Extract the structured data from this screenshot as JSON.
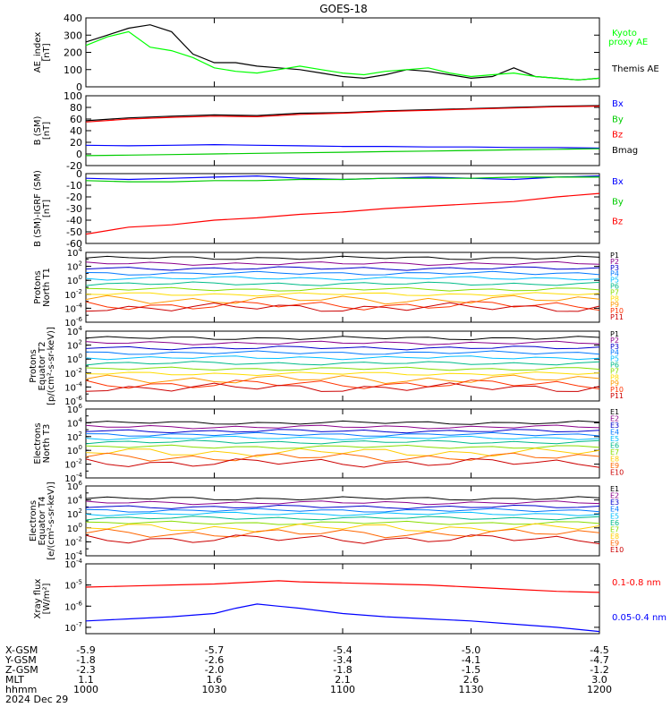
{
  "title": "GOES-18",
  "footer": {
    "row_labels": [
      "X-GSM",
      "Y-GSM",
      "Z-GSM",
      "MLT",
      "hhmm",
      "2024 Dec 29"
    ],
    "columns": [
      [
        "-5.9",
        "-1.8",
        "-2.3",
        "1.1",
        "1000"
      ],
      [
        "-5.7",
        "-2.6",
        "-2.0",
        "1.6",
        "1030"
      ],
      [
        "-5.4",
        "-3.4",
        "-1.8",
        "2.1",
        "1100"
      ],
      [
        "-5.0",
        "-4.1",
        "-1.5",
        "2.6",
        "1130"
      ],
      [
        "-4.5",
        "-4.7",
        "-1.2",
        "3.0",
        "1200"
      ]
    ]
  },
  "chart_data": [
    {
      "type": "line",
      "ylabel": [
        "AE_index",
        "[nT]"
      ],
      "x_range": [
        0,
        120
      ],
      "ylim": [
        0,
        400
      ],
      "yticks": [
        "0",
        "100",
        "200",
        "300",
        "400"
      ],
      "colors": {
        "Kyoto proxy AE": "#00ff00",
        "Themis AE": "#000000"
      },
      "series": [
        {
          "name": "Themis AE",
          "x": [
            0,
            5,
            10,
            15,
            20,
            25,
            30,
            35,
            40,
            45,
            50,
            55,
            60,
            65,
            70,
            75,
            80,
            85,
            90,
            95,
            100,
            105,
            110,
            115,
            120
          ],
          "values": [
            260,
            300,
            340,
            360,
            320,
            190,
            140,
            140,
            120,
            110,
            100,
            80,
            60,
            50,
            70,
            100,
            90,
            70,
            50,
            60,
            110,
            60,
            50,
            40,
            50
          ]
        },
        {
          "name": "Kyoto proxy AE",
          "x": [
            0,
            5,
            10,
            15,
            20,
            25,
            30,
            35,
            40,
            45,
            50,
            55,
            60,
            65,
            70,
            75,
            80,
            85,
            90,
            95,
            100,
            105,
            110,
            115,
            120
          ],
          "values": [
            240,
            290,
            320,
            230,
            210,
            170,
            110,
            90,
            80,
            100,
            120,
            100,
            80,
            70,
            90,
            100,
            110,
            80,
            60,
            70,
            80,
            60,
            50,
            40,
            50
          ]
        }
      ]
    },
    {
      "type": "line",
      "ylabel": [
        "B (SM)",
        "[nT]"
      ],
      "x_range": [
        0,
        120
      ],
      "ylim": [
        -20,
        100
      ],
      "yticks": [
        "-20",
        "0",
        "20",
        "40",
        "60",
        "80",
        "100"
      ],
      "colors": {
        "Bx": "#0000ff",
        "By": "#00cc00",
        "Bz": "#ff0000",
        "Bmag": "#000000"
      },
      "series": [
        {
          "name": "Bmag",
          "x": [
            0,
            10,
            20,
            30,
            40,
            50,
            60,
            70,
            80,
            90,
            100,
            110,
            120
          ],
          "values": [
            57,
            62,
            65,
            67,
            66,
            70,
            71,
            74,
            76,
            78,
            80,
            82,
            83
          ]
        },
        {
          "name": "Bz",
          "x": [
            0,
            10,
            20,
            30,
            40,
            50,
            60,
            70,
            80,
            90,
            100,
            110,
            120
          ],
          "values": [
            55,
            60,
            63,
            65,
            64,
            68,
            70,
            73,
            75,
            77,
            79,
            81,
            82
          ]
        },
        {
          "name": "Bx",
          "x": [
            0,
            10,
            20,
            30,
            40,
            50,
            60,
            70,
            80,
            90,
            100,
            110,
            120
          ],
          "values": [
            15,
            14,
            15,
            16,
            15,
            14,
            13,
            13,
            12,
            12,
            11,
            11,
            10
          ]
        },
        {
          "name": "By",
          "x": [
            0,
            10,
            20,
            30,
            40,
            50,
            60,
            70,
            80,
            90,
            100,
            110,
            120
          ],
          "values": [
            -3,
            -2,
            -1,
            0,
            1,
            2,
            3,
            4,
            5,
            6,
            7,
            8,
            9
          ]
        }
      ]
    },
    {
      "type": "line",
      "ylabel": [
        "B (SM)-IGRF (SM)",
        "[nT]"
      ],
      "x_range": [
        0,
        120
      ],
      "ylim": [
        -60,
        0
      ],
      "yticks": [
        "-60",
        "-50",
        "-40",
        "-30",
        "-20",
        "-10",
        "0"
      ],
      "colors": {
        "Bx": "#0000ff",
        "By": "#00cc00",
        "Bz": "#ff0000"
      },
      "series": [
        {
          "name": "Bx",
          "x": [
            0,
            10,
            20,
            30,
            40,
            50,
            60,
            70,
            80,
            90,
            100,
            110,
            120
          ],
          "values": [
            -4,
            -5,
            -4,
            -3,
            -2,
            -4,
            -5,
            -4,
            -3,
            -4,
            -5,
            -3,
            -2
          ]
        },
        {
          "name": "By",
          "x": [
            0,
            10,
            20,
            30,
            40,
            50,
            60,
            70,
            80,
            90,
            100,
            110,
            120
          ],
          "values": [
            -6,
            -7,
            -7,
            -6,
            -6,
            -5,
            -5,
            -4,
            -4,
            -4,
            -3,
            -3,
            -3
          ]
        },
        {
          "name": "Bz",
          "x": [
            0,
            10,
            20,
            30,
            40,
            50,
            60,
            70,
            80,
            90,
            100,
            110,
            120
          ],
          "values": [
            -52,
            -46,
            -44,
            -40,
            -38,
            -35,
            -33,
            -30,
            -28,
            -26,
            -24,
            -20,
            -17
          ]
        }
      ]
    },
    {
      "type": "line",
      "ylabel": [
        "Protons",
        "North T1"
      ],
      "x_range": [
        0,
        120
      ],
      "yscale": "log",
      "ylim_exp": [
        -6,
        4
      ],
      "yticks_exp": [
        -6,
        -4,
        -2,
        0,
        2,
        4
      ],
      "legend": [
        "P1",
        "P2",
        "P3",
        "P4",
        "P5",
        "P6",
        "P7",
        "P8",
        "P9",
        "P10",
        "P11"
      ],
      "colors": [
        "#000000",
        "#8b008b",
        "#0000cd",
        "#0077ff",
        "#00bfff",
        "#00bb88",
        "#88dd00",
        "#ffdd00",
        "#ff9900",
        "#ff3300",
        "#cc0000"
      ],
      "levels_exp": [
        3.2,
        2.4,
        1.7,
        1.0,
        0.3,
        -0.5,
        -1.3,
        -2.0,
        -2.8,
        -3.6,
        -3.9
      ]
    },
    {
      "type": "line",
      "ylabel": [
        "Protons",
        "Equator T2",
        "[p/(cm²-s-sr-keV)]"
      ],
      "x_range": [
        0,
        120
      ],
      "yscale": "log",
      "ylim_exp": [
        -6,
        4
      ],
      "yticks_exp": [
        -6,
        -4,
        -2,
        0,
        2,
        4
      ],
      "legend": [
        "P1",
        "P2",
        "P3",
        "P4",
        "P5",
        "P6",
        "P7",
        "P8",
        "P9",
        "P10",
        "P11"
      ],
      "colors": [
        "#000000",
        "#8b008b",
        "#0000cd",
        "#0077ff",
        "#00bfff",
        "#00bb88",
        "#88dd00",
        "#ffdd00",
        "#ff9900",
        "#ff3300",
        "#cc0000"
      ],
      "levels_exp": [
        3.0,
        2.3,
        1.6,
        0.9,
        0.2,
        -0.6,
        -1.4,
        -2.1,
        -2.9,
        -3.6,
        -4.1
      ]
    },
    {
      "type": "line",
      "ylabel": [
        "Electrons",
        "North T3"
      ],
      "x_range": [
        0,
        120
      ],
      "yscale": "log",
      "ylim_exp": [
        -4,
        6
      ],
      "yticks_exp": [
        -4,
        -2,
        0,
        2,
        4,
        6
      ],
      "legend": [
        "E1",
        "E2",
        "E3",
        "E4",
        "E5",
        "E6",
        "E7",
        "E8",
        "E9",
        "E10"
      ],
      "colors": [
        "#000000",
        "#8b008b",
        "#0000cd",
        "#0077ff",
        "#00bfff",
        "#00bb88",
        "#88dd00",
        "#ffcc00",
        "#ff6600",
        "#cc0000"
      ],
      "levels_exp": [
        4.0,
        3.4,
        2.8,
        2.3,
        1.8,
        1.2,
        0.5,
        -0.3,
        -1.0,
        -1.8
      ]
    },
    {
      "type": "line",
      "ylabel": [
        "Electrons",
        "Equator T4",
        "[e/(cm²-s-sr-keV)]"
      ],
      "x_range": [
        0,
        120
      ],
      "yscale": "log",
      "ylim_exp": [
        -4,
        6
      ],
      "yticks_exp": [
        -4,
        -2,
        0,
        2,
        4,
        6
      ],
      "legend": [
        "E1",
        "E2",
        "E3",
        "E4",
        "E5",
        "E6",
        "E7",
        "E8",
        "E9",
        "E10"
      ],
      "colors": [
        "#000000",
        "#8b008b",
        "#0000cd",
        "#0077ff",
        "#00bfff",
        "#00bb88",
        "#88dd00",
        "#ffcc00",
        "#ff6600",
        "#cc0000"
      ],
      "levels_exp": [
        4.2,
        3.6,
        3.0,
        2.5,
        2.0,
        1.4,
        0.7,
        0.0,
        -0.8,
        -1.6
      ]
    },
    {
      "type": "line",
      "ylabel": [
        "Xray flux",
        "[W/m²]"
      ],
      "x_range": [
        0,
        120
      ],
      "yscale": "log",
      "ylim_exp": [
        -7.3,
        -4
      ],
      "yticks_exp": [
        -7,
        -6,
        -5,
        -4
      ],
      "colors": {
        "0.1-0.8 nm": "#ff0000",
        "0.05-0.4 nm": "#0000ff"
      },
      "series": [
        {
          "name": "0.1-0.8 nm",
          "x": [
            0,
            10,
            20,
            30,
            40,
            45,
            50,
            60,
            70,
            80,
            90,
            100,
            110,
            120
          ],
          "values_exp": [
            -5.1,
            -5.05,
            -5.0,
            -4.95,
            -4.85,
            -4.8,
            -4.85,
            -4.9,
            -4.95,
            -5.0,
            -5.1,
            -5.2,
            -5.3,
            -5.35
          ]
        },
        {
          "name": "0.05-0.4 nm",
          "x": [
            0,
            10,
            20,
            30,
            35,
            40,
            45,
            50,
            60,
            70,
            80,
            90,
            100,
            110,
            120
          ],
          "values_exp": [
            -6.7,
            -6.6,
            -6.5,
            -6.35,
            -6.1,
            -5.9,
            -6.0,
            -6.1,
            -6.35,
            -6.5,
            -6.6,
            -6.7,
            -6.85,
            -7.0,
            -7.2
          ]
        }
      ]
    }
  ]
}
